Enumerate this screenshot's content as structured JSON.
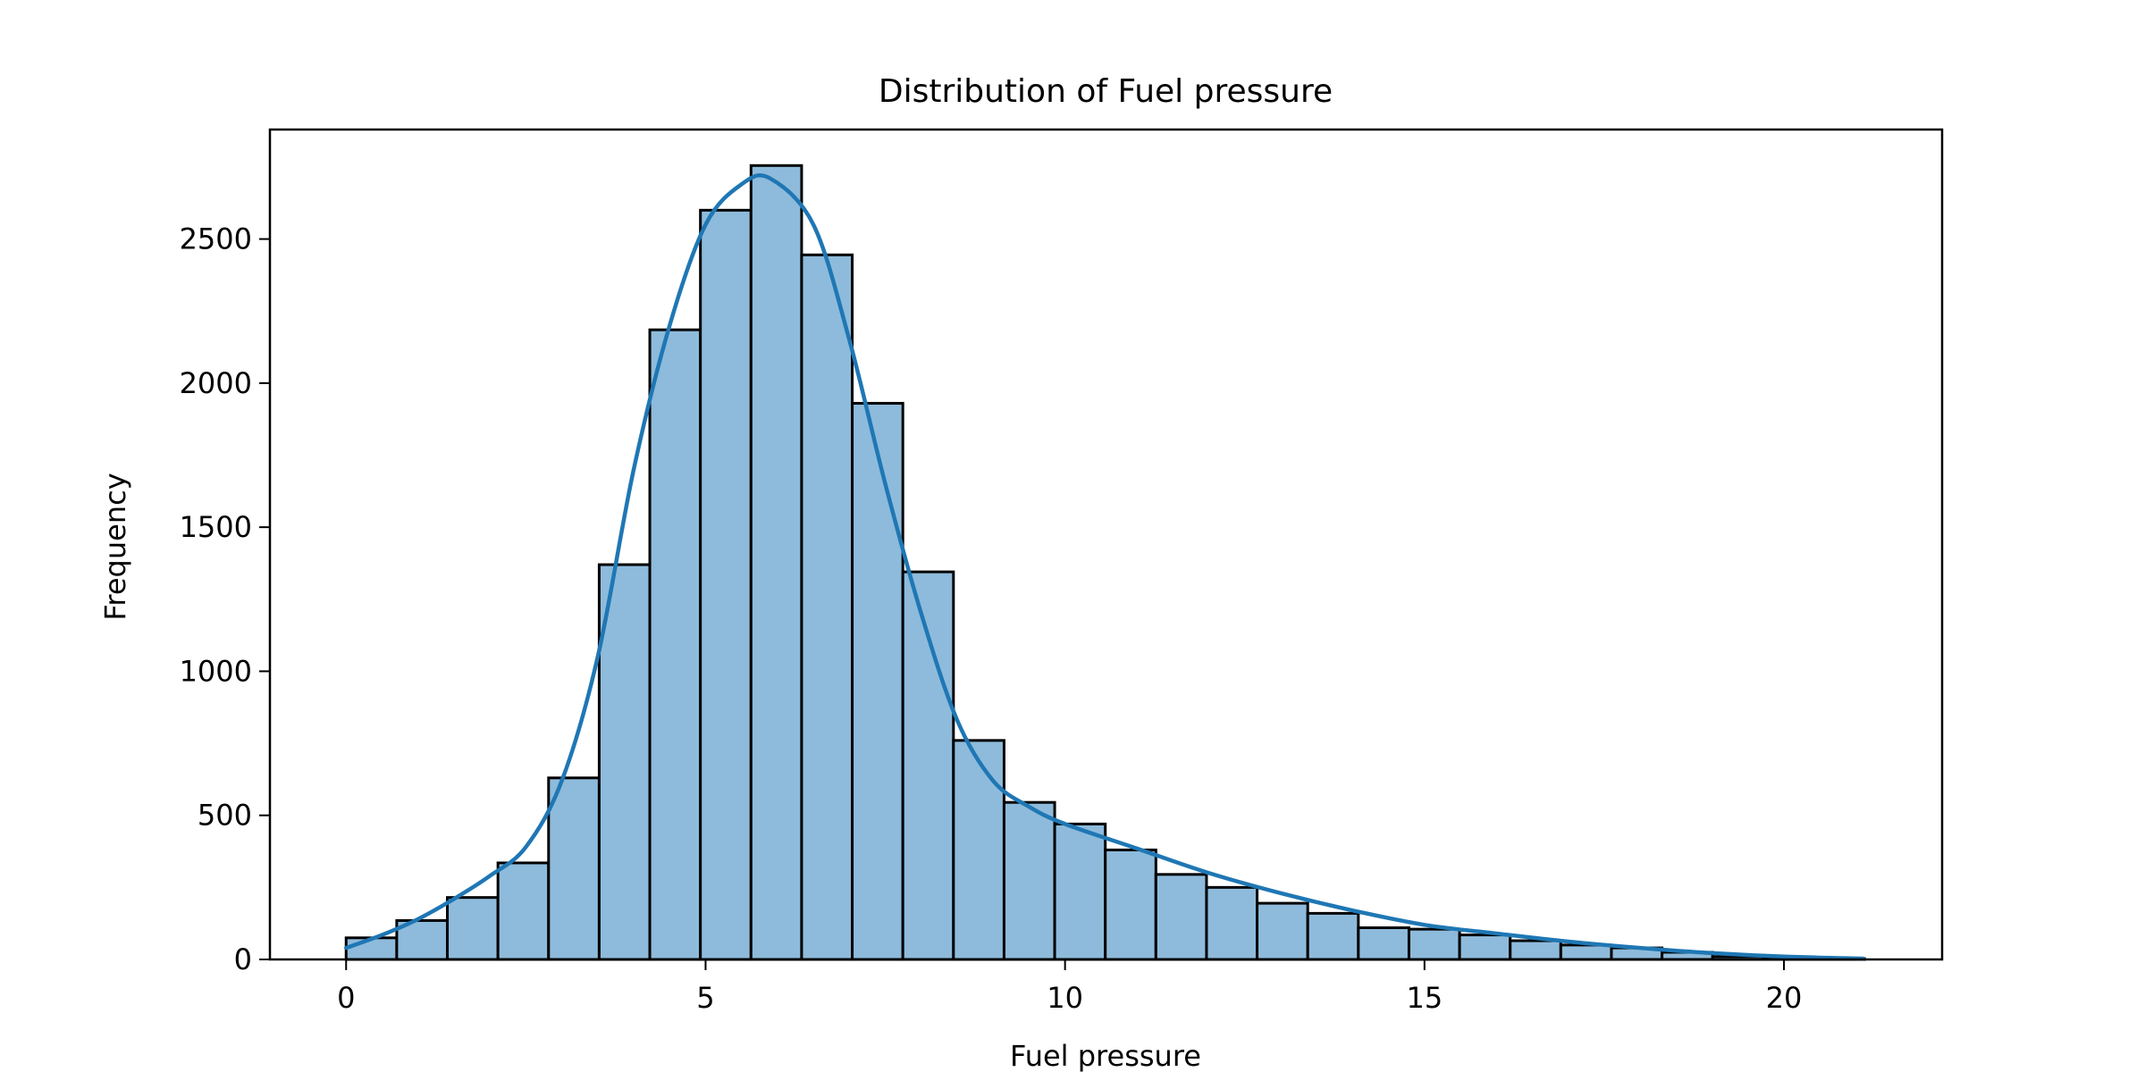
{
  "chart_data": {
    "type": "bar",
    "title": "Distribution of Fuel pressure",
    "xlabel": "Fuel pressure",
    "ylabel": "Frequency",
    "xlim": [
      -1.06,
      22.2
    ],
    "ylim": [
      0,
      2880
    ],
    "xticks": [
      0,
      5,
      10,
      15,
      20
    ],
    "yticks": [
      0,
      500,
      1000,
      1500,
      2000,
      2500
    ],
    "bin_edges": [
      0.0,
      0.704,
      1.408,
      2.112,
      2.816,
      3.52,
      4.224,
      4.928,
      5.632,
      6.336,
      7.04,
      7.744,
      8.448,
      9.152,
      9.856,
      10.56,
      11.264,
      11.968,
      12.672,
      13.376,
      14.08,
      14.784,
      15.488,
      16.192,
      16.896,
      17.6,
      18.304,
      19.008,
      19.712,
      20.416,
      21.12
    ],
    "counts": [
      75,
      135,
      215,
      335,
      630,
      1370,
      2185,
      2600,
      2755,
      2445,
      1930,
      1345,
      760,
      545,
      470,
      380,
      295,
      250,
      195,
      160,
      110,
      105,
      85,
      65,
      50,
      40,
      25,
      10,
      5,
      3
    ],
    "kde": {
      "x": [
        0,
        0.5,
        1,
        1.5,
        2,
        2.5,
        3,
        3.5,
        4,
        4.5,
        5,
        5.5,
        5.9,
        6.5,
        7,
        7.5,
        8,
        8.5,
        9,
        9.5,
        10,
        11,
        12,
        13,
        14,
        15,
        16,
        17,
        18,
        19,
        20,
        21.1
      ],
      "y": [
        40,
        85,
        140,
        210,
        290,
        390,
        620,
        1050,
        1700,
        2200,
        2550,
        2690,
        2710,
        2550,
        2150,
        1650,
        1200,
        830,
        620,
        530,
        470,
        385,
        300,
        230,
        170,
        120,
        90,
        62,
        40,
        22,
        10,
        3
      ]
    },
    "colors": {
      "bar_fill": "#8ebbdb",
      "bar_edge": "#000000",
      "kde_line": "#1f77b4"
    },
    "grid": false,
    "legend": "none"
  }
}
